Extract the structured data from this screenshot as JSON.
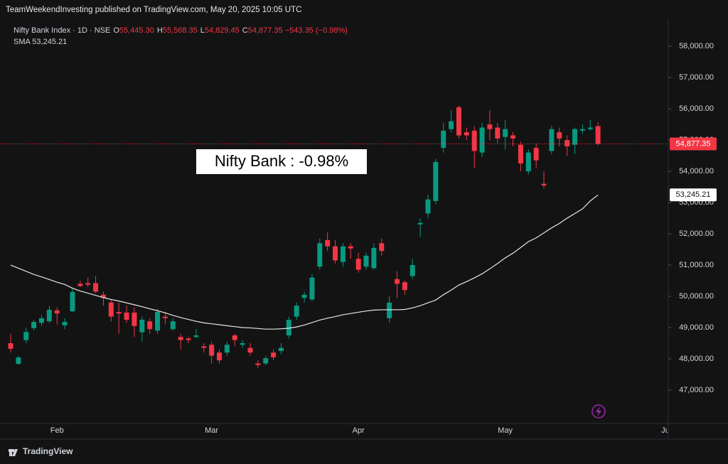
{
  "header": "TeamWeekendInvesting published on TradingView.com, May 20, 2025 10:05 UTC",
  "legend": {
    "fields": [
      {
        "key": "O",
        "value": "55,445.30"
      },
      {
        "key": "H",
        "value": "55,568.35"
      },
      {
        "key": "L",
        "value": "54,829.45"
      },
      {
        "key": "C",
        "value": "54,877.35"
      }
    ],
    "change": "−543.35 (−0.98%)",
    "sma_value": "53,245.21"
  },
  "footer": "TradingView",
  "chart_data": {
    "type": "candlestick",
    "annotation": "Nifty Bank : -0.98%",
    "last_price_label": "54,877.35",
    "sma_label": "53,245.21",
    "categories": [
      null,
      null,
      null,
      null,
      null,
      null,
      "Feb",
      null,
      null,
      null,
      null,
      null,
      null,
      null,
      null,
      null,
      null,
      null,
      null,
      null,
      null,
      null,
      null,
      null,
      null,
      null,
      "Mar",
      null,
      null,
      null,
      null,
      null,
      null,
      null,
      null,
      null,
      null,
      null,
      null,
      null,
      null,
      null,
      null,
      null,
      null,
      "Apr",
      null,
      null,
      null,
      null,
      null,
      null,
      null,
      null,
      null,
      null,
      null,
      null,
      null,
      null,
      null,
      null,
      null,
      null,
      "May",
      null,
      null,
      null,
      null,
      null,
      null,
      null,
      null,
      null,
      null,
      null,
      null,
      null,
      null,
      null,
      null,
      null,
      null,
      null,
      null,
      "Jun"
    ],
    "series": [
      {
        "name": "Nifty Bank Index · 1D · NSE",
        "up_color": "#089981",
        "down_color": "#f23645",
        "open": [
          48500,
          47840,
          48600,
          48980,
          49150,
          49200,
          49550,
          49070,
          49520,
          50400,
          50420,
          50420,
          50050,
          49800,
          49500,
          49480,
          49480,
          48850,
          49200,
          48900,
          49350,
          48950,
          48700,
          48650,
          48700,
          48400,
          48450,
          48200,
          48200,
          48750,
          48450,
          48350,
          47850,
          47850,
          48200,
          48250,
          48750,
          49350,
          49950,
          49900,
          50950,
          51800,
          51600,
          51100,
          51600,
          51200,
          50950,
          50900,
          51700,
          49300,
          50550,
          50450,
          50650,
          52300,
          52650,
          53050,
          54750,
          55350,
          56050,
          55250,
          55300,
          54600,
          55500,
          55400,
          55100,
          55150,
          54850,
          54000,
          54750,
          53600,
          54650,
          55250,
          55000,
          54850,
          55300,
          55350,
          55445.3,
          null,
          null,
          null,
          null,
          null,
          null,
          null,
          null,
          null
        ],
        "high": [
          48800,
          48100,
          49000,
          49250,
          49400,
          49700,
          49650,
          49300,
          50250,
          50500,
          50600,
          50650,
          50150,
          49900,
          49800,
          49700,
          49650,
          49350,
          49300,
          49600,
          49500,
          49300,
          48800,
          48700,
          48950,
          48500,
          48550,
          48300,
          48550,
          48800,
          48600,
          48500,
          47950,
          48100,
          48300,
          48500,
          49350,
          49800,
          50150,
          50700,
          51850,
          52050,
          51800,
          51700,
          51700,
          51400,
          51400,
          51700,
          51850,
          50000,
          50800,
          50500,
          51200,
          52500,
          53250,
          54400,
          55550,
          55950,
          56100,
          55400,
          55450,
          55550,
          55950,
          55550,
          55650,
          55250,
          54950,
          54700,
          54900,
          54000,
          55450,
          55400,
          55150,
          55400,
          55500,
          55650,
          55568.35,
          null,
          null,
          null,
          null,
          null,
          null,
          null,
          null,
          null
        ],
        "low": [
          48200,
          47800,
          48500,
          48900,
          49050,
          49150,
          49100,
          48950,
          49500,
          50300,
          50300,
          50100,
          49700,
          49200,
          48800,
          49150,
          48700,
          48550,
          48800,
          48800,
          49100,
          48900,
          48300,
          48500,
          48650,
          48200,
          47850,
          47850,
          48100,
          48400,
          48350,
          48100,
          47700,
          47800,
          47950,
          48150,
          48650,
          49250,
          49800,
          49850,
          50850,
          51450,
          51050,
          50950,
          51200,
          50750,
          50850,
          50850,
          51300,
          49150,
          49950,
          50050,
          50550,
          51900,
          52500,
          52950,
          54600,
          55250,
          55050,
          55000,
          54100,
          54450,
          55000,
          54900,
          54700,
          54800,
          54000,
          53900,
          54100,
          53450,
          54550,
          54800,
          54500,
          54550,
          55200,
          55300,
          54829.45,
          null,
          null,
          null,
          null,
          null,
          null,
          null,
          null,
          null
        ],
        "close": [
          48320,
          48045,
          48860,
          49180,
          49300,
          49570,
          49450,
          49180,
          50140,
          50330,
          50370,
          50150,
          49950,
          49350,
          49450,
          49250,
          49050,
          49250,
          48950,
          49500,
          49300,
          49200,
          48600,
          48600,
          48750,
          48350,
          48100,
          47950,
          48450,
          48600,
          48500,
          48200,
          47800,
          48020,
          48050,
          48350,
          49250,
          49700,
          50050,
          50600,
          51700,
          51600,
          51150,
          51600,
          51530,
          50850,
          51300,
          51550,
          51450,
          49800,
          50400,
          50200,
          51000,
          52350,
          53100,
          54300,
          55300,
          55600,
          55150,
          55150,
          54650,
          55400,
          55350,
          55050,
          55350,
          55050,
          54250,
          54600,
          54350,
          53550,
          55350,
          55050,
          54800,
          55350,
          55350,
          55400,
          54877.35,
          null,
          null,
          null,
          null,
          null,
          null,
          null,
          null,
          null
        ]
      },
      {
        "name": "SMA",
        "type": "line",
        "color": "#e6e6e6",
        "values": [
          51000,
          50900,
          50800,
          50700,
          50620,
          50540,
          50450,
          50380,
          50260,
          50170,
          50100,
          50030,
          49960,
          49900,
          49850,
          49790,
          49730,
          49670,
          49600,
          49540,
          49470,
          49390,
          49320,
          49260,
          49200,
          49150,
          49120,
          49090,
          49060,
          49030,
          49000,
          48990,
          48970,
          48950,
          48950,
          48960,
          48980,
          49020,
          49080,
          49160,
          49240,
          49300,
          49350,
          49410,
          49450,
          49490,
          49530,
          49560,
          49570,
          49570,
          49570,
          49580,
          49630,
          49700,
          49790,
          49880,
          50050,
          50200,
          50360,
          50470,
          50590,
          50720,
          50880,
          51050,
          51230,
          51380,
          51560,
          51750,
          51870,
          52030,
          52190,
          52330,
          52500,
          52650,
          52800,
          53050,
          53245.21,
          null,
          null,
          null,
          null,
          null,
          null,
          null,
          null,
          null
        ]
      }
    ],
    "ylim": [
      45930,
      58800
    ],
    "yticks": [
      {
        "value": 47000,
        "label": "47,000.00"
      },
      {
        "value": 48000,
        "label": "48,000.00"
      },
      {
        "value": 49000,
        "label": "49,000.00"
      },
      {
        "value": 50000,
        "label": "50,000.00"
      },
      {
        "value": 51000,
        "label": "51,000.00"
      },
      {
        "value": 52000,
        "label": "52,000.00"
      },
      {
        "value": 53000,
        "label": "53,000.00"
      },
      {
        "value": 54000,
        "label": "54,000.00"
      },
      {
        "value": 55000,
        "label": "55,000.00"
      },
      {
        "value": 56000,
        "label": "56,000.00"
      },
      {
        "value": 57000,
        "label": "57,000.00"
      },
      {
        "value": 58000,
        "label": "58,000.00"
      }
    ],
    "grid": false
  }
}
